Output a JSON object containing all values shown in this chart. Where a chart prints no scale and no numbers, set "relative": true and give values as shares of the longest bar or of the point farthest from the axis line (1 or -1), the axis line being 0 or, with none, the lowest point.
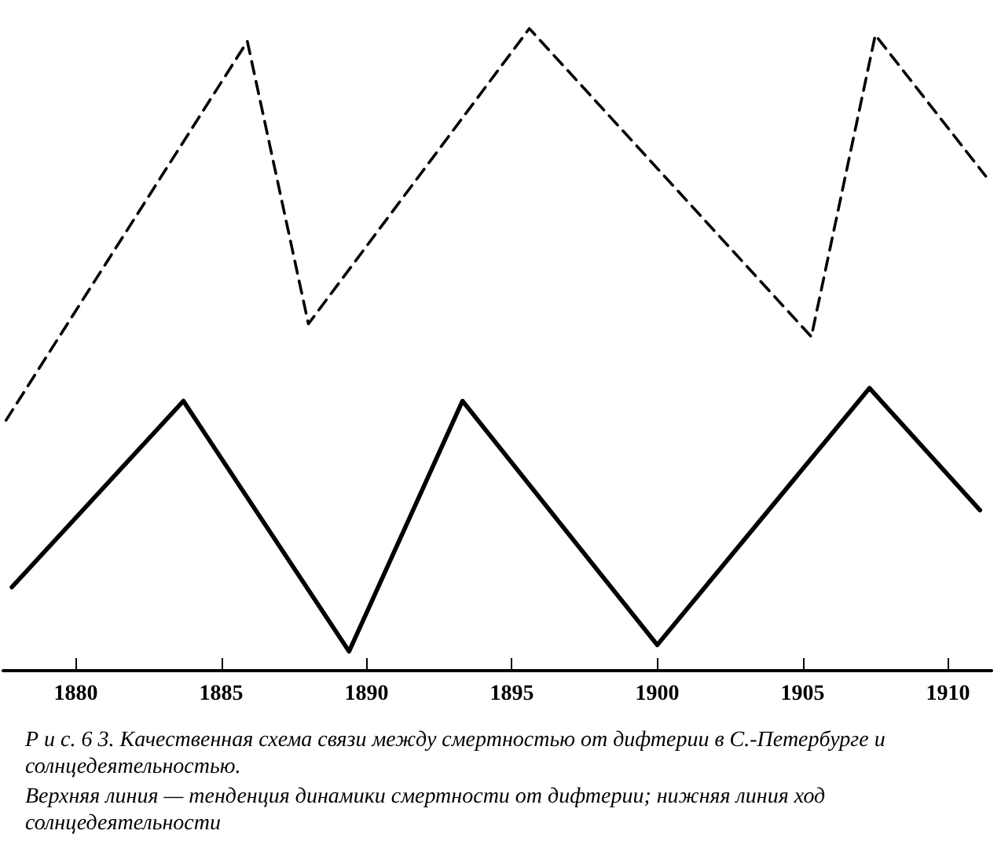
{
  "chart_data": {
    "type": "line",
    "relative": true,
    "xlim": [
      1877.5,
      1911.5
    ],
    "xticks": [
      1880,
      1885,
      1890,
      1895,
      1900,
      1905,
      1910
    ],
    "grid": false,
    "marker": "none",
    "annotations": [
      "Р и с. 6 3.  Качественная схема связи между смертностью от дифтерии в  С.-Петербурге  и  солнцедеятельностью.",
      "Верхняя линия — тенденция динамики смертности от дифтерии; нижняя линия     ход солнцедеятельности"
    ],
    "series": [
      {
        "color": "#000000",
        "line_style": "dashed",
        "x": [
          1877.6,
          1885.9,
          1888.0,
          1895.6,
          1905.3,
          1907.5,
          1911.3
        ],
        "values": [
          0.39,
          0.98,
          0.54,
          1.0,
          0.52,
          0.99,
          0.77
        ]
      },
      {
        "color": "#000000",
        "line_style": "solid",
        "x": [
          1877.8,
          1883.7,
          1889.4,
          1893.3,
          1900.0,
          1907.3,
          1911.1
        ],
        "values": [
          0.13,
          0.42,
          0.03,
          0.42,
          0.04,
          0.44,
          0.25
        ]
      }
    ]
  }
}
